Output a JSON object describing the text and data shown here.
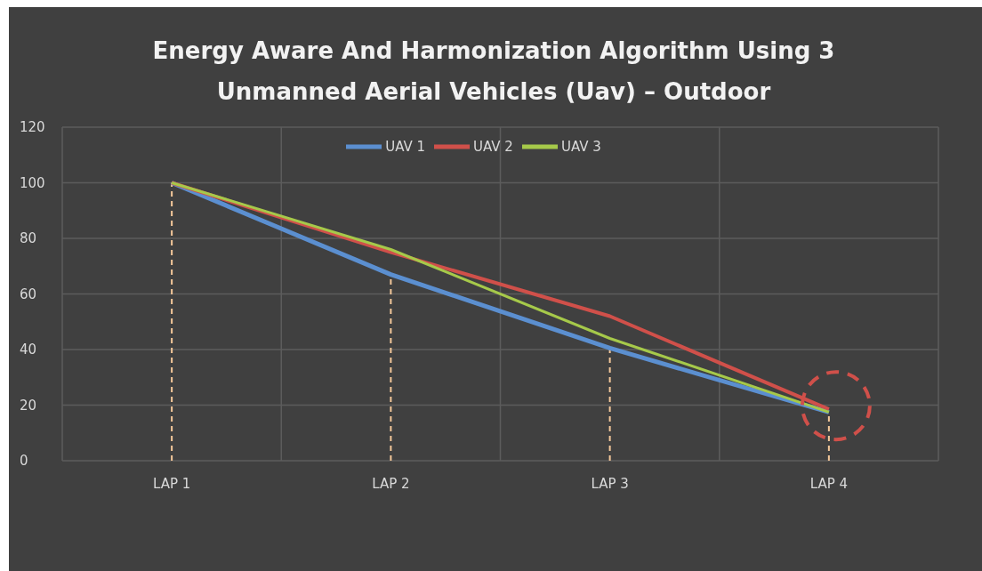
{
  "chart_data": {
    "type": "line",
    "title": "Energy Aware And Harmonization Algorithm Using 3 Unmanned Aerial Vehicles (Uav) – Outdoor",
    "categories": [
      "LAP 1",
      "LAP 2",
      "LAP 3",
      "LAP 4"
    ],
    "series": [
      {
        "name": "UAV 1",
        "color": "#5b8fd0",
        "values": [
          100,
          67,
          40.5,
          17.5
        ]
      },
      {
        "name": "UAV 2",
        "color": "#d0504a",
        "values": [
          100,
          75,
          52,
          18.5
        ]
      },
      {
        "name": "UAV 3",
        "color": "#a6c94a",
        "values": [
          100,
          76,
          44,
          17.5
        ]
      }
    ],
    "ylim": [
      0,
      120
    ],
    "yticks": [
      0,
      20,
      40,
      60,
      80,
      100,
      120
    ],
    "grid": true,
    "legend": "top",
    "marker": "none",
    "line_style": "solid",
    "ref_lines": [
      {
        "axis": "x",
        "value": "LAP 1",
        "color": "#f4c89a",
        "line_style": "dashed"
      },
      {
        "axis": "x",
        "value": "LAP 2",
        "color": "#f4c89a",
        "line_style": "dashed"
      },
      {
        "axis": "x",
        "value": "LAP 3",
        "color": "#f4c89a",
        "line_style": "dashed"
      },
      {
        "axis": "x",
        "value": "LAP 4",
        "color": "#f4c89a",
        "line_style": "dashed"
      }
    ]
  }
}
